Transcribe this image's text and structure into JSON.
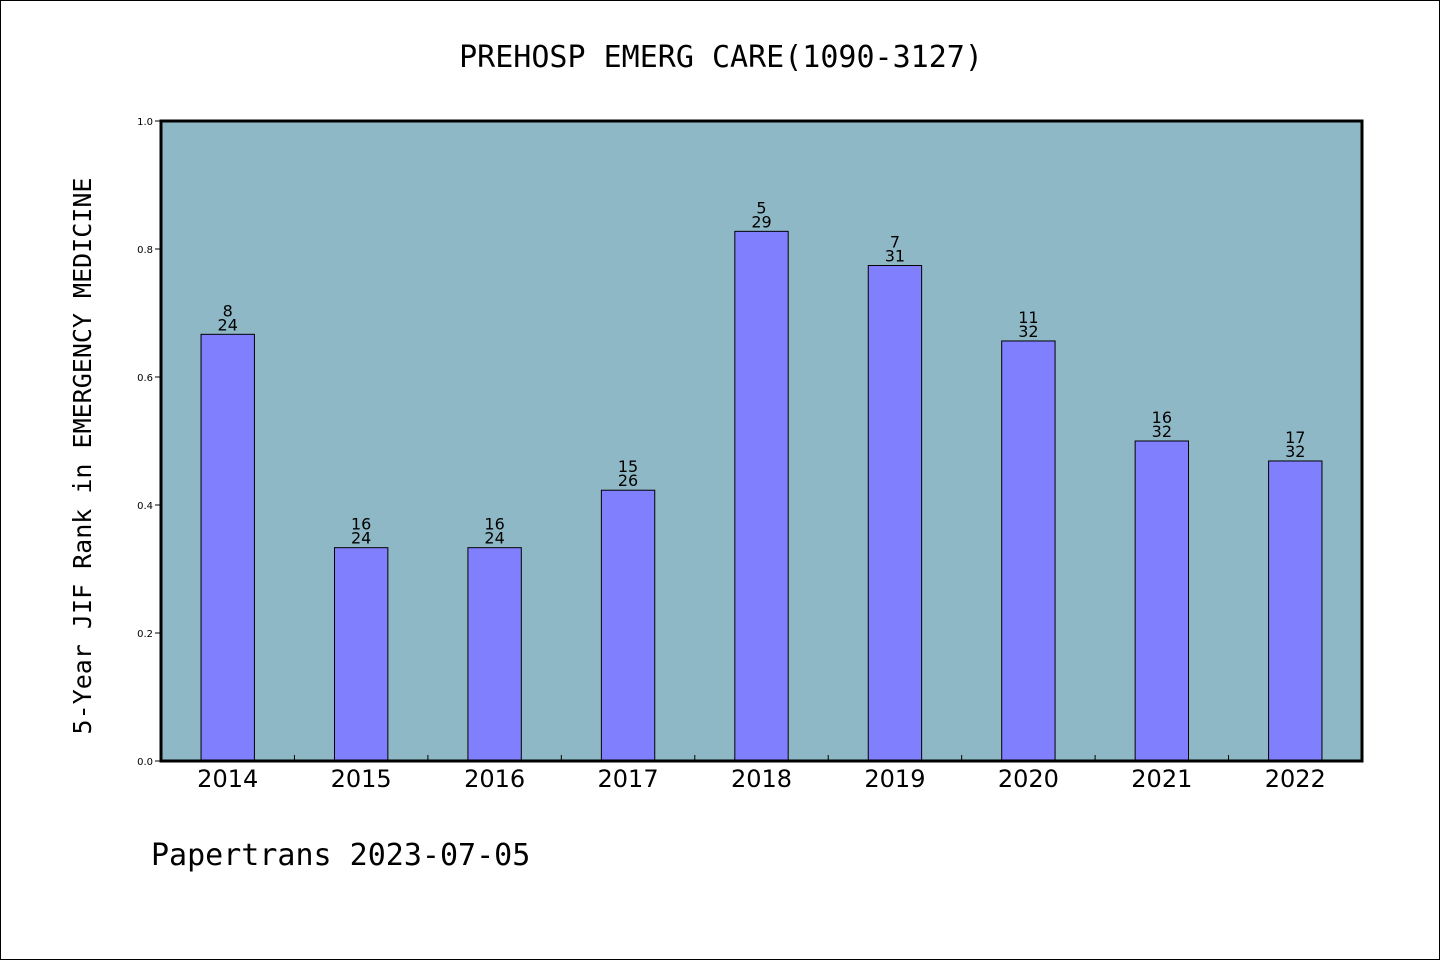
{
  "chart_data": {
    "type": "bar",
    "title": "PREHOSP EMERG CARE(1090-3127)",
    "ylabel": "5-Year JIF Rank in EMERGENCY MEDICINE",
    "xlabel": "",
    "ylim": [
      0,
      1.0
    ],
    "yticks": [
      "0.0",
      "0.2",
      "0.4",
      "0.6",
      "0.8",
      "1.0"
    ],
    "categories": [
      "2014",
      "2015",
      "2016",
      "2017",
      "2018",
      "2019",
      "2020",
      "2021",
      "2022"
    ],
    "values": [
      0.6667,
      0.3333,
      0.3333,
      0.4231,
      0.8276,
      0.7742,
      0.6563,
      0.5,
      0.4688
    ],
    "labels_top": [
      "8",
      "16",
      "16",
      "15",
      "5",
      "7",
      "11",
      "16",
      "17"
    ],
    "labels_bottom": [
      "24",
      "24",
      "24",
      "26",
      "29",
      "31",
      "32",
      "32",
      "32"
    ],
    "grid": false,
    "colors": {
      "plot_bg": "#8fb8c6",
      "bar": "#8080ff",
      "bar_edge": "#000000"
    }
  },
  "footer": "Papertrans 2023-07-05"
}
